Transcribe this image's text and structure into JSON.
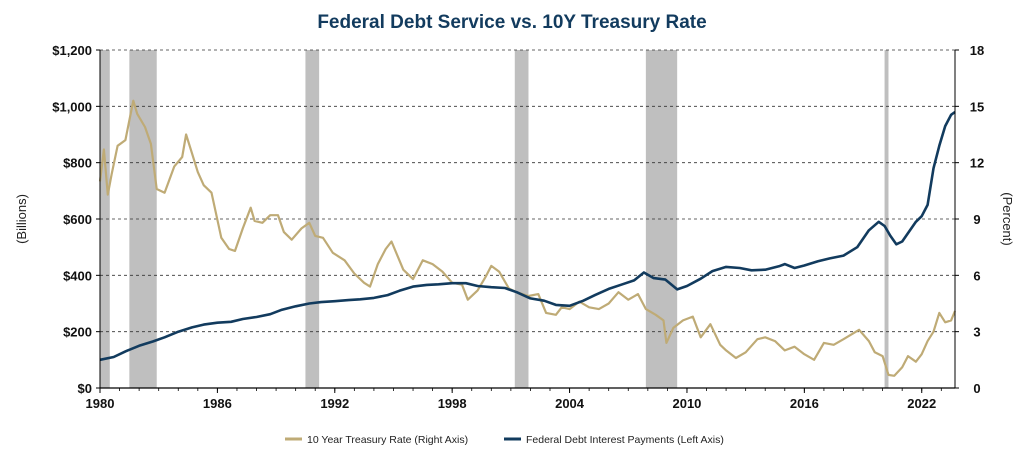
{
  "chart_data": {
    "type": "line",
    "title": "Federal Debt Service vs. 10Y Treasury Rate",
    "ylabel_left": "(Billions)",
    "ylabel_right": "(Percent)",
    "xlabel": "",
    "xlim": [
      1980,
      2023.7
    ],
    "ylim_left": [
      0,
      1200
    ],
    "ylim_right": [
      0,
      18
    ],
    "x_ticks": [
      1980,
      1986,
      1992,
      1998,
      2004,
      2010,
      2016,
      2022
    ],
    "x_tick_labels": [
      "1980",
      "1986",
      "1992",
      "1998",
      "2004",
      "2010",
      "2016",
      "2022"
    ],
    "y_left_ticks": [
      0,
      200,
      400,
      600,
      800,
      1000,
      1200
    ],
    "y_left_tick_labels": [
      "$0",
      "$200",
      "$400",
      "$600",
      "$800",
      "$1,000",
      "$1,200"
    ],
    "y_right_ticks": [
      0,
      3,
      6,
      9,
      12,
      15,
      18
    ],
    "y_right_tick_labels": [
      "0",
      "3",
      "6",
      "9",
      "12",
      "15",
      "18"
    ],
    "grid": "horizontal dashed",
    "legend_position": "bottom",
    "recessions": [
      {
        "start": 1980.0,
        "end": 1980.5
      },
      {
        "start": 1981.5,
        "end": 1982.9
      },
      {
        "start": 1990.5,
        "end": 1991.2
      },
      {
        "start": 2001.2,
        "end": 2001.9
      },
      {
        "start": 2007.9,
        "end": 2009.5
      },
      {
        "start": 2020.1,
        "end": 2020.3
      }
    ],
    "series": [
      {
        "name": "10 Year Treasury Rate (Right Axis)",
        "axis": "right",
        "color": "#bfab76",
        "x": [
          1980.0,
          1980.2,
          1980.4,
          1980.6,
          1980.9,
          1981.3,
          1981.7,
          1981.9,
          1982.3,
          1982.6,
          1982.9,
          1983.3,
          1983.8,
          1984.2,
          1984.4,
          1984.7,
          1985.0,
          1985.3,
          1985.7,
          1986.2,
          1986.6,
          1986.9,
          1987.3,
          1987.7,
          1987.9,
          1988.3,
          1988.7,
          1989.1,
          1989.4,
          1989.8,
          1990.3,
          1990.7,
          1991.0,
          1991.4,
          1991.9,
          1992.5,
          1993.0,
          1993.5,
          1993.8,
          1994.2,
          1994.6,
          1994.9,
          1995.5,
          1996.0,
          1996.5,
          1997.0,
          1997.5,
          1998.0,
          1998.5,
          1998.8,
          1999.3,
          1999.7,
          2000.0,
          2000.4,
          2000.9,
          2001.3,
          2001.9,
          2002.4,
          2002.8,
          2003.3,
          2003.6,
          2004.0,
          2004.5,
          2005.0,
          2005.5,
          2006.0,
          2006.5,
          2007.0,
          2007.5,
          2007.9,
          2008.4,
          2008.8,
          2008.95,
          2009.3,
          2009.8,
          2010.3,
          2010.7,
          2011.2,
          2011.7,
          2012.0,
          2012.5,
          2013.0,
          2013.6,
          2014.0,
          2014.5,
          2015.0,
          2015.5,
          2016.0,
          2016.5,
          2017.0,
          2017.5,
          2018.0,
          2018.8,
          2019.3,
          2019.6,
          2020.0,
          2020.3,
          2020.6,
          2021.0,
          2021.3,
          2021.7,
          2022.0,
          2022.3,
          2022.6,
          2022.9,
          2023.2,
          2023.5,
          2023.7
        ],
        "values": [
          11.0,
          12.7,
          10.3,
          11.4,
          12.9,
          13.2,
          15.3,
          14.6,
          13.9,
          13.0,
          10.6,
          10.4,
          11.8,
          12.3,
          13.5,
          12.5,
          11.5,
          10.8,
          10.4,
          8.0,
          7.4,
          7.3,
          8.5,
          9.6,
          8.9,
          8.8,
          9.2,
          9.2,
          8.3,
          7.9,
          8.5,
          8.8,
          8.1,
          8.0,
          7.2,
          6.8,
          6.1,
          5.6,
          5.4,
          6.6,
          7.4,
          7.8,
          6.3,
          5.8,
          6.8,
          6.6,
          6.2,
          5.6,
          5.5,
          4.7,
          5.2,
          5.9,
          6.5,
          6.2,
          5.3,
          5.1,
          4.9,
          5.0,
          4.0,
          3.9,
          4.3,
          4.2,
          4.6,
          4.3,
          4.2,
          4.5,
          5.1,
          4.7,
          5.0,
          4.2,
          3.9,
          3.6,
          2.4,
          3.2,
          3.6,
          3.8,
          2.7,
          3.4,
          2.3,
          2.0,
          1.6,
          1.9,
          2.6,
          2.7,
          2.5,
          2.0,
          2.2,
          1.8,
          1.5,
          2.4,
          2.3,
          2.6,
          3.1,
          2.5,
          1.9,
          1.7,
          0.7,
          0.65,
          1.1,
          1.7,
          1.4,
          1.8,
          2.5,
          3.0,
          4.0,
          3.5,
          3.6,
          4.1
        ]
      },
      {
        "name": "Federal Debt Interest Payments (Left Axis)",
        "axis": "left",
        "color": "#123b5e",
        "x": [
          1980.0,
          1980.7,
          1981.3,
          1982.0,
          1982.7,
          1983.3,
          1984.0,
          1984.7,
          1985.3,
          1986.0,
          1986.7,
          1987.3,
          1988.0,
          1988.7,
          1989.3,
          1990.0,
          1990.7,
          1991.3,
          1992.0,
          1992.7,
          1993.3,
          1994.0,
          1994.7,
          1995.3,
          1996.0,
          1996.7,
          1997.3,
          1998.0,
          1998.7,
          1999.3,
          2000.0,
          2000.7,
          2001.3,
          2002.0,
          2002.7,
          2003.3,
          2004.0,
          2004.7,
          2005.3,
          2006.0,
          2006.7,
          2007.3,
          2007.8,
          2008.3,
          2008.9,
          2009.5,
          2010.0,
          2010.7,
          2011.3,
          2012.0,
          2012.7,
          2013.3,
          2014.0,
          2014.7,
          2015.0,
          2015.5,
          2016.0,
          2016.7,
          2017.3,
          2018.0,
          2018.7,
          2019.3,
          2019.8,
          2020.1,
          2020.4,
          2020.7,
          2021.0,
          2021.3,
          2021.7,
          2022.0,
          2022.3,
          2022.6,
          2022.9,
          2023.2,
          2023.5,
          2023.7
        ],
        "values": [
          100,
          110,
          130,
          150,
          165,
          180,
          200,
          215,
          225,
          232,
          235,
          245,
          252,
          262,
          278,
          290,
          300,
          305,
          308,
          312,
          315,
          320,
          330,
          345,
          360,
          366,
          368,
          372,
          372,
          362,
          358,
          355,
          340,
          318,
          310,
          295,
          292,
          310,
          330,
          352,
          368,
          382,
          410,
          390,
          385,
          350,
          362,
          388,
          415,
          430,
          426,
          418,
          420,
          432,
          440,
          426,
          435,
          450,
          460,
          470,
          500,
          560,
          590,
          575,
          540,
          510,
          520,
          550,
          590,
          610,
          650,
          780,
          860,
          930,
          970,
          980
        ]
      }
    ]
  }
}
